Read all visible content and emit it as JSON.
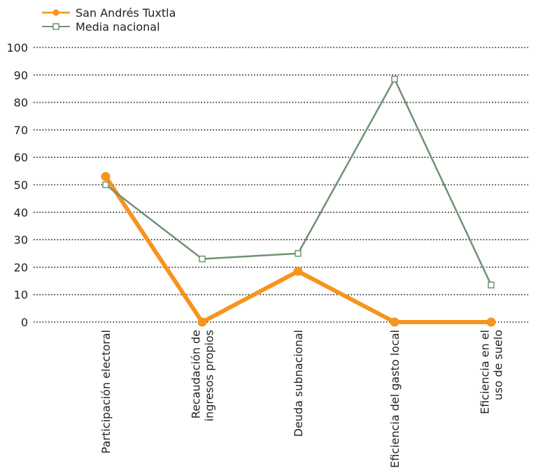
{
  "chart_data": {
    "type": "line",
    "categories": [
      [
        "Participación electoral"
      ],
      [
        "Recaudación de",
        "ingresos propios"
      ],
      [
        "Deuda subnacional"
      ],
      [
        "Eficiencia del gasto local"
      ],
      [
        "Eficiencia en el",
        "uso de suelo"
      ]
    ],
    "series": [
      {
        "name": "San Andrés Tuxtla",
        "values": [
          53,
          0,
          18.5,
          0,
          0
        ],
        "color": "#f7941d",
        "marker": "filled-circle"
      },
      {
        "name": "Media nacional",
        "values": [
          50,
          23,
          25,
          88.5,
          13.5
        ],
        "color": "#6f9273",
        "marker": "hollow-square"
      }
    ],
    "ylim": [
      0,
      100
    ],
    "yticks": [
      0,
      10,
      20,
      30,
      40,
      50,
      60,
      70,
      80,
      90,
      100
    ],
    "grid": "horizontal-dotted",
    "legend_position": "top-left"
  }
}
